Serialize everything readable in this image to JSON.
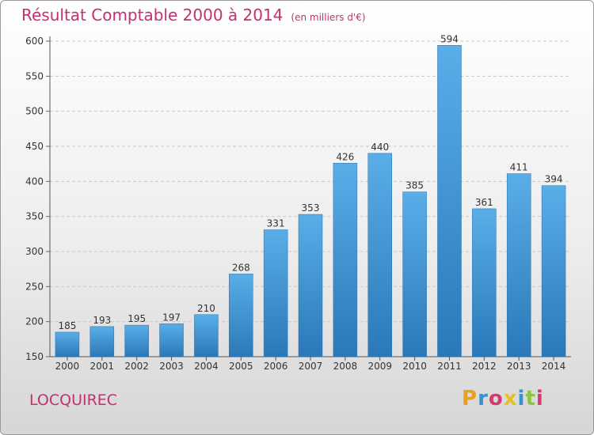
{
  "chart_data": {
    "type": "bar",
    "title": "Résultat Comptable 2000 à 2014",
    "subtitle": "(en milliers d'€)",
    "categories": [
      "2000",
      "2001",
      "2002",
      "2003",
      "2004",
      "2005",
      "2006",
      "2007",
      "2008",
      "2009",
      "2010",
      "2011",
      "2012",
      "2013",
      "2014"
    ],
    "values": [
      185,
      193,
      195,
      197,
      210,
      268,
      331,
      353,
      426,
      440,
      385,
      594,
      361,
      411,
      394
    ],
    "ylim": [
      150,
      600
    ],
    "yticks": [
      150,
      200,
      250,
      300,
      350,
      400,
      450,
      500,
      550,
      600
    ],
    "grid": true,
    "legend": "none",
    "bar_color_top": "#5aaee8",
    "bar_color_bottom": "#2a78b8"
  },
  "footer": {
    "commune": "LOCQUIREC"
  },
  "logo": {
    "text": "Proxiti",
    "colors": [
      "#e8a020",
      "#3a8fd0",
      "#d23b6b",
      "#e8c020",
      "#3a8fd0",
      "#8cc63f",
      "#d23b6b"
    ]
  }
}
